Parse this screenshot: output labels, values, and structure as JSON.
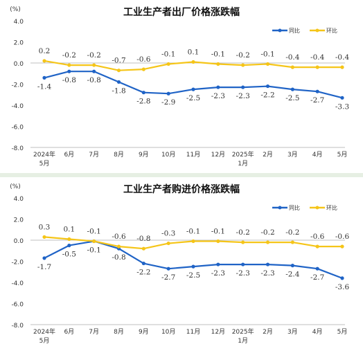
{
  "chart_data": [
    {
      "type": "line",
      "title": "工业生产者出厂价格涨跌幅",
      "unit": "(%)",
      "ylim": [
        -8.0,
        4.0
      ],
      "yticks": [
        "4.0",
        "2.0",
        "0.0",
        "-2.0",
        "-4.0",
        "-6.0",
        "-8.0"
      ],
      "categories": [
        {
          "top": "2024年",
          "bottom": "5月"
        },
        {
          "top": "6月",
          "bottom": ""
        },
        {
          "top": "7月",
          "bottom": ""
        },
        {
          "top": "8月",
          "bottom": ""
        },
        {
          "top": "9月",
          "bottom": ""
        },
        {
          "top": "10月",
          "bottom": ""
        },
        {
          "top": "11月",
          "bottom": ""
        },
        {
          "top": "12月",
          "bottom": ""
        },
        {
          "top": "2025年",
          "bottom": "1月"
        },
        {
          "top": "2月",
          "bottom": ""
        },
        {
          "top": "3月",
          "bottom": ""
        },
        {
          "top": "4月",
          "bottom": ""
        },
        {
          "top": "5月",
          "bottom": ""
        }
      ],
      "series": [
        {
          "name": "同比",
          "color": "#1f63c6",
          "values": [
            -1.4,
            -0.8,
            -0.8,
            -1.8,
            -2.8,
            -2.9,
            -2.5,
            -2.3,
            -2.3,
            -2.2,
            -2.5,
            -2.7,
            -3.3
          ],
          "labels": [
            "-1.4",
            "-0.8",
            "-0.8",
            "-1.8",
            "-2.8",
            "-2.9",
            "-2.5",
            "-2.3",
            "-2.3",
            "-2.2",
            "-2.5",
            "-2.7",
            "-3.3"
          ]
        },
        {
          "name": "环比",
          "color": "#f5c518",
          "values": [
            0.2,
            -0.2,
            -0.2,
            -0.7,
            -0.6,
            -0.1,
            0.1,
            -0.1,
            -0.2,
            -0.1,
            -0.4,
            -0.4,
            -0.4
          ],
          "labels": [
            "0.2",
            "-0.2",
            "-0.2",
            "-0.7",
            "-0.6",
            "-0.1",
            "0.1",
            "-0.1",
            "-0.2",
            "-0.1",
            "-0.4",
            "-0.4",
            "-0.4"
          ]
        }
      ],
      "legend": "top-right",
      "grid": false
    },
    {
      "type": "line",
      "title": "工业生产者购进价格涨跌幅",
      "unit": "(%)",
      "ylim": [
        -8.0,
        4.0
      ],
      "yticks": [
        "4.0",
        "2.0",
        "0.0",
        "-2.0",
        "-4.0",
        "-6.0",
        "-8.0"
      ],
      "categories": [
        {
          "top": "2024年",
          "bottom": "5月"
        },
        {
          "top": "6月",
          "bottom": ""
        },
        {
          "top": "7月",
          "bottom": ""
        },
        {
          "top": "8月",
          "bottom": ""
        },
        {
          "top": "9月",
          "bottom": ""
        },
        {
          "top": "10月",
          "bottom": ""
        },
        {
          "top": "11月",
          "bottom": ""
        },
        {
          "top": "12月",
          "bottom": ""
        },
        {
          "top": "2025年",
          "bottom": "1月"
        },
        {
          "top": "2月",
          "bottom": ""
        },
        {
          "top": "3月",
          "bottom": ""
        },
        {
          "top": "4月",
          "bottom": ""
        },
        {
          "top": "5月",
          "bottom": ""
        }
      ],
      "series": [
        {
          "name": "同比",
          "color": "#1f63c6",
          "values": [
            -1.7,
            -0.5,
            -0.1,
            -0.8,
            -2.2,
            -2.7,
            -2.5,
            -2.3,
            -2.3,
            -2.3,
            -2.4,
            -2.7,
            -3.6
          ],
          "labels": [
            "-1.7",
            "-0.5",
            "-0.1",
            "-0.8",
            "-2.2",
            "-2.7",
            "-2.5",
            "-2.3",
            "-2.3",
            "-2.3",
            "-2.4",
            "-2.7",
            "-3.6"
          ]
        },
        {
          "name": "环比",
          "color": "#f5c518",
          "values": [
            0.3,
            0.1,
            -0.1,
            -0.6,
            -0.8,
            -0.3,
            -0.1,
            -0.1,
            -0.2,
            -0.2,
            -0.2,
            -0.6,
            -0.6
          ],
          "labels": [
            "0.3",
            "0.1",
            "-0.1",
            "-0.6",
            "-0.8",
            "-0.3",
            "-0.1",
            "-0.1",
            "-0.2",
            "-0.2",
            "-0.2",
            "-0.6",
            "-0.6"
          ]
        }
      ],
      "legend": "top-right",
      "grid": false
    }
  ]
}
